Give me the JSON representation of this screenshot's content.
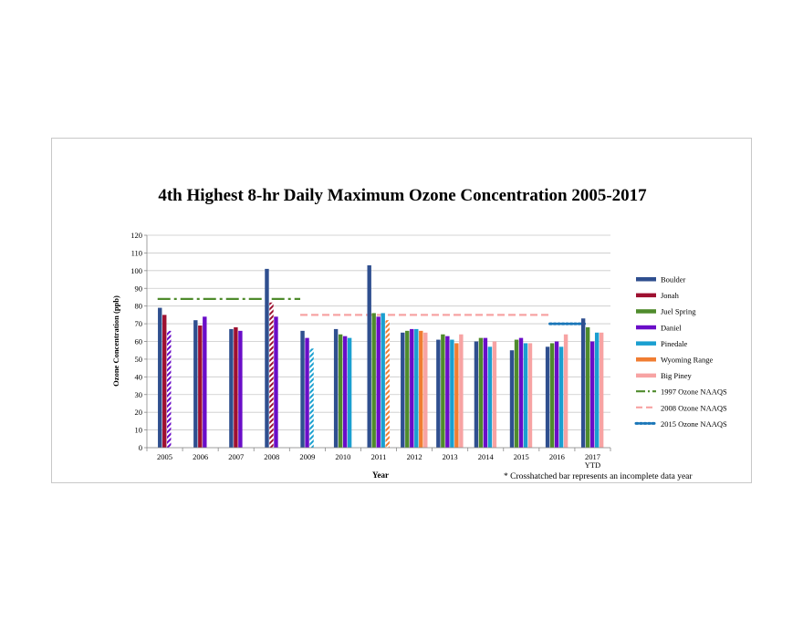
{
  "chart_data": {
    "type": "bar",
    "title": "4th Highest 8-hr Daily Maximum Ozone Concentration 2005-2017",
    "xlabel": "Year",
    "ylabel": "Ozone Concentration (ppb)",
    "ylim": [
      0,
      120
    ],
    "yticks": [
      0,
      10,
      20,
      30,
      40,
      50,
      60,
      70,
      80,
      90,
      100,
      110,
      120
    ],
    "grid": true,
    "legend_position": "right",
    "note": "* Crosshatched bar represents an incomplete data year",
    "categories": [
      "2005",
      "2006",
      "2007",
      "2008",
      "2009",
      "2010",
      "2011",
      "2012",
      "2013",
      "2014",
      "2015",
      "2016",
      "2017 YTD"
    ],
    "category_lines": [
      [
        "2005"
      ],
      [
        "2006"
      ],
      [
        "2007"
      ],
      [
        "2008"
      ],
      [
        "2009"
      ],
      [
        "2010"
      ],
      [
        "2011"
      ],
      [
        "2012"
      ],
      [
        "2013"
      ],
      [
        "2014"
      ],
      [
        "2015"
      ],
      [
        "2016"
      ],
      [
        "2017",
        "YTD"
      ]
    ],
    "series": [
      {
        "name": "Boulder",
        "color": "#2f4f8f",
        "values": [
          79,
          72,
          67,
          101,
          66,
          67,
          103,
          65,
          61,
          60,
          55,
          57,
          73
        ],
        "incomplete": []
      },
      {
        "name": "Jonah",
        "color": "#9e1030",
        "values": [
          75,
          69,
          68,
          82,
          null,
          null,
          null,
          null,
          null,
          null,
          null,
          null,
          null
        ],
        "incomplete": [
          3
        ]
      },
      {
        "name": "Juel Spring",
        "color": "#4f8b2c",
        "values": [
          null,
          null,
          null,
          null,
          null,
          64,
          76,
          66,
          64,
          62,
          61,
          59,
          68
        ],
        "incomplete": []
      },
      {
        "name": "Daniel",
        "color": "#6a0dc8",
        "values": [
          66,
          74,
          66,
          74,
          62,
          63,
          74,
          67,
          63,
          62,
          62,
          60,
          60
        ],
        "incomplete": [
          0
        ]
      },
      {
        "name": "Pinedale",
        "color": "#1a9fd0",
        "values": [
          null,
          null,
          null,
          null,
          56,
          62,
          76,
          67,
          61,
          57,
          59,
          57,
          65
        ],
        "incomplete": [
          4
        ]
      },
      {
        "name": "Wyoming Range",
        "color": "#f07d32",
        "values": [
          null,
          null,
          null,
          null,
          null,
          null,
          72,
          66,
          59,
          null,
          null,
          null,
          null
        ],
        "incomplete": [
          6
        ]
      },
      {
        "name": "Big Piney",
        "color": "#f7a3a3",
        "values": [
          null,
          null,
          null,
          null,
          null,
          null,
          null,
          65,
          64,
          60,
          59,
          64,
          65
        ],
        "incomplete": []
      }
    ],
    "reference_lines": [
      {
        "name": "1997 Ozone NAAQS",
        "value": 84,
        "from": "2005",
        "to": "2009",
        "color": "#4f8b2c",
        "style": "dash-dot"
      },
      {
        "name": "2008 Ozone NAAQS",
        "value": 75,
        "from": "2009",
        "to": "2016",
        "color": "#f7a3a3",
        "style": "dashed"
      },
      {
        "name": "2015 Ozone NAAQS",
        "value": 70,
        "from": "2016",
        "to": "2017 YTD",
        "color": "#1a76b8",
        "style": "dotted"
      }
    ]
  }
}
